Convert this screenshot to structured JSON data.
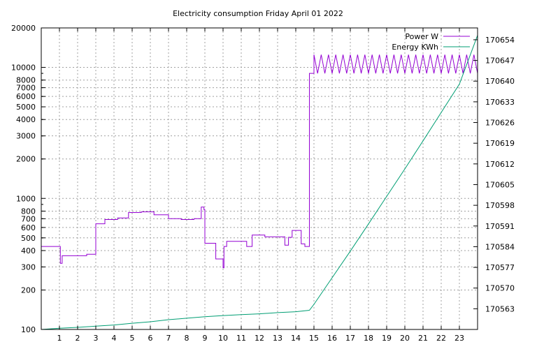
{
  "chart_data": {
    "type": "line",
    "title": "Electricity consumption Friday April 01 2022",
    "xlabel": "",
    "ylabel": "",
    "y2label": "",
    "x_range": [
      0,
      24
    ],
    "x_ticks": [
      1,
      2,
      3,
      4,
      5,
      6,
      7,
      8,
      9,
      10,
      11,
      12,
      13,
      14,
      15,
      16,
      17,
      18,
      19,
      20,
      21,
      22,
      23
    ],
    "y_scale": "log",
    "y_range": [
      100,
      20000
    ],
    "y_ticks": [
      {
        "value": 100,
        "label": "100"
      },
      {
        "value": 200,
        "label": "200"
      },
      {
        "value": 300,
        "label": "300"
      },
      {
        "value": 400,
        "label": "400"
      },
      {
        "value": 500,
        "label": "500"
      },
      {
        "value": 600,
        "label": "600"
      },
      {
        "value": 700,
        "label": "700"
      },
      {
        "value": 800,
        "label": "800"
      },
      {
        "value": 1000,
        "label": "1000"
      },
      {
        "value": 2000,
        "label": "2000"
      },
      {
        "value": 3000,
        "label": "3000"
      },
      {
        "value": 4000,
        "label": "4000"
      },
      {
        "value": 5000,
        "label": "5000"
      },
      {
        "value": 6000,
        "label": "6000"
      },
      {
        "value": 7000,
        "label": "7000"
      },
      {
        "value": 8000,
        "label": "8000"
      },
      {
        "value": 10000,
        "label": "10000"
      },
      {
        "value": 20000,
        "label": "20000"
      }
    ],
    "y2_range": [
      170556,
      170658
    ],
    "y2_ticks": [
      170563,
      170570,
      170577,
      170584,
      170591,
      170598,
      170605,
      170612,
      170619,
      170626,
      170633,
      170640,
      170647,
      170654
    ],
    "grid": true,
    "legend_position": "top-right",
    "series": [
      {
        "name": "Power W",
        "axis": "left",
        "color": "#9400d3",
        "step": true,
        "points": [
          [
            0,
            430
          ],
          [
            1.05,
            430
          ],
          [
            1.05,
            320
          ],
          [
            1.15,
            320
          ],
          [
            1.15,
            365
          ],
          [
            2.5,
            365
          ],
          [
            2.5,
            375
          ],
          [
            3.0,
            375
          ],
          [
            3.0,
            640
          ],
          [
            3.5,
            640
          ],
          [
            3.5,
            690
          ],
          [
            4.2,
            690
          ],
          [
            4.2,
            710
          ],
          [
            4.8,
            710
          ],
          [
            4.8,
            780
          ],
          [
            5.5,
            780
          ],
          [
            5.5,
            790
          ],
          [
            6.2,
            790
          ],
          [
            6.2,
            750
          ],
          [
            7.0,
            750
          ],
          [
            7.0,
            700
          ],
          [
            7.7,
            700
          ],
          [
            7.7,
            690
          ],
          [
            8.4,
            690
          ],
          [
            8.4,
            700
          ],
          [
            8.8,
            700
          ],
          [
            8.8,
            860
          ],
          [
            8.95,
            860
          ],
          [
            8.95,
            820
          ],
          [
            9.0,
            820
          ],
          [
            9.0,
            455
          ],
          [
            9.6,
            455
          ],
          [
            9.6,
            345
          ],
          [
            10.0,
            345
          ],
          [
            10.0,
            295
          ],
          [
            10.05,
            295
          ],
          [
            10.05,
            430
          ],
          [
            10.2,
            430
          ],
          [
            10.2,
            470
          ],
          [
            11.3,
            470
          ],
          [
            11.3,
            430
          ],
          [
            11.6,
            430
          ],
          [
            11.6,
            525
          ],
          [
            12.3,
            525
          ],
          [
            12.3,
            510
          ],
          [
            13.4,
            510
          ],
          [
            13.4,
            440
          ],
          [
            13.6,
            440
          ],
          [
            13.6,
            505
          ],
          [
            13.8,
            505
          ],
          [
            13.8,
            570
          ],
          [
            14.3,
            570
          ],
          [
            14.3,
            450
          ],
          [
            14.5,
            450
          ],
          [
            14.5,
            430
          ],
          [
            14.75,
            430
          ],
          [
            14.75,
            9000
          ],
          [
            15.0,
            9000
          ],
          [
            15.0,
            12500
          ],
          [
            15.2,
            9000
          ],
          [
            15.4,
            12500
          ],
          [
            15.6,
            9000
          ],
          [
            15.8,
            12500
          ],
          [
            16.0,
            9000
          ],
          [
            16.2,
            12500
          ],
          [
            16.4,
            9000
          ],
          [
            16.6,
            12500
          ],
          [
            16.8,
            9000
          ],
          [
            17.0,
            12500
          ],
          [
            17.2,
            9000
          ],
          [
            17.4,
            12500
          ],
          [
            17.6,
            9000
          ],
          [
            17.8,
            12500
          ],
          [
            18.0,
            9000
          ],
          [
            18.2,
            12500
          ],
          [
            18.4,
            9000
          ],
          [
            18.6,
            12500
          ],
          [
            18.8,
            9000
          ],
          [
            19.0,
            12500
          ],
          [
            19.2,
            9000
          ],
          [
            19.4,
            12500
          ],
          [
            19.6,
            9000
          ],
          [
            19.8,
            12500
          ],
          [
            20.0,
            9000
          ],
          [
            20.2,
            12500
          ],
          [
            20.4,
            9000
          ],
          [
            20.6,
            12500
          ],
          [
            20.8,
            9000
          ],
          [
            21.0,
            12500
          ],
          [
            21.2,
            9000
          ],
          [
            21.4,
            12500
          ],
          [
            21.6,
            9000
          ],
          [
            21.8,
            12500
          ],
          [
            22.0,
            9000
          ],
          [
            22.2,
            12500
          ],
          [
            22.4,
            9000
          ],
          [
            22.6,
            12500
          ],
          [
            22.8,
            9000
          ],
          [
            23.0,
            12500
          ],
          [
            23.2,
            9000
          ],
          [
            23.4,
            12500
          ],
          [
            23.6,
            9000
          ],
          [
            23.8,
            12500
          ],
          [
            24.0,
            9000
          ],
          [
            24.0,
            12500
          ]
        ]
      },
      {
        "name": "Energy KWh",
        "axis": "right",
        "color": "#009e73",
        "step": false,
        "points": [
          [
            0,
            170556
          ],
          [
            1,
            170556.4
          ],
          [
            2,
            170556.7
          ],
          [
            3,
            170557.1
          ],
          [
            4,
            170557.5
          ],
          [
            5,
            170558.1
          ],
          [
            6,
            170558.6
          ],
          [
            7,
            170559.3
          ],
          [
            8,
            170559.8
          ],
          [
            9,
            170560.3
          ],
          [
            10,
            170560.7
          ],
          [
            11,
            170561.0
          ],
          [
            12,
            170561.3
          ],
          [
            13,
            170561.7
          ],
          [
            14,
            170562.0
          ],
          [
            14.75,
            170562.5
          ],
          [
            15,
            170564.5
          ],
          [
            16,
            170573.5
          ],
          [
            17,
            170582.5
          ],
          [
            18,
            170591.7
          ],
          [
            19,
            170601.0
          ],
          [
            20,
            170610.3
          ],
          [
            21,
            170619.8
          ],
          [
            22,
            170629.4
          ],
          [
            23,
            170639.0
          ],
          [
            24,
            170655.5
          ]
        ]
      }
    ]
  }
}
